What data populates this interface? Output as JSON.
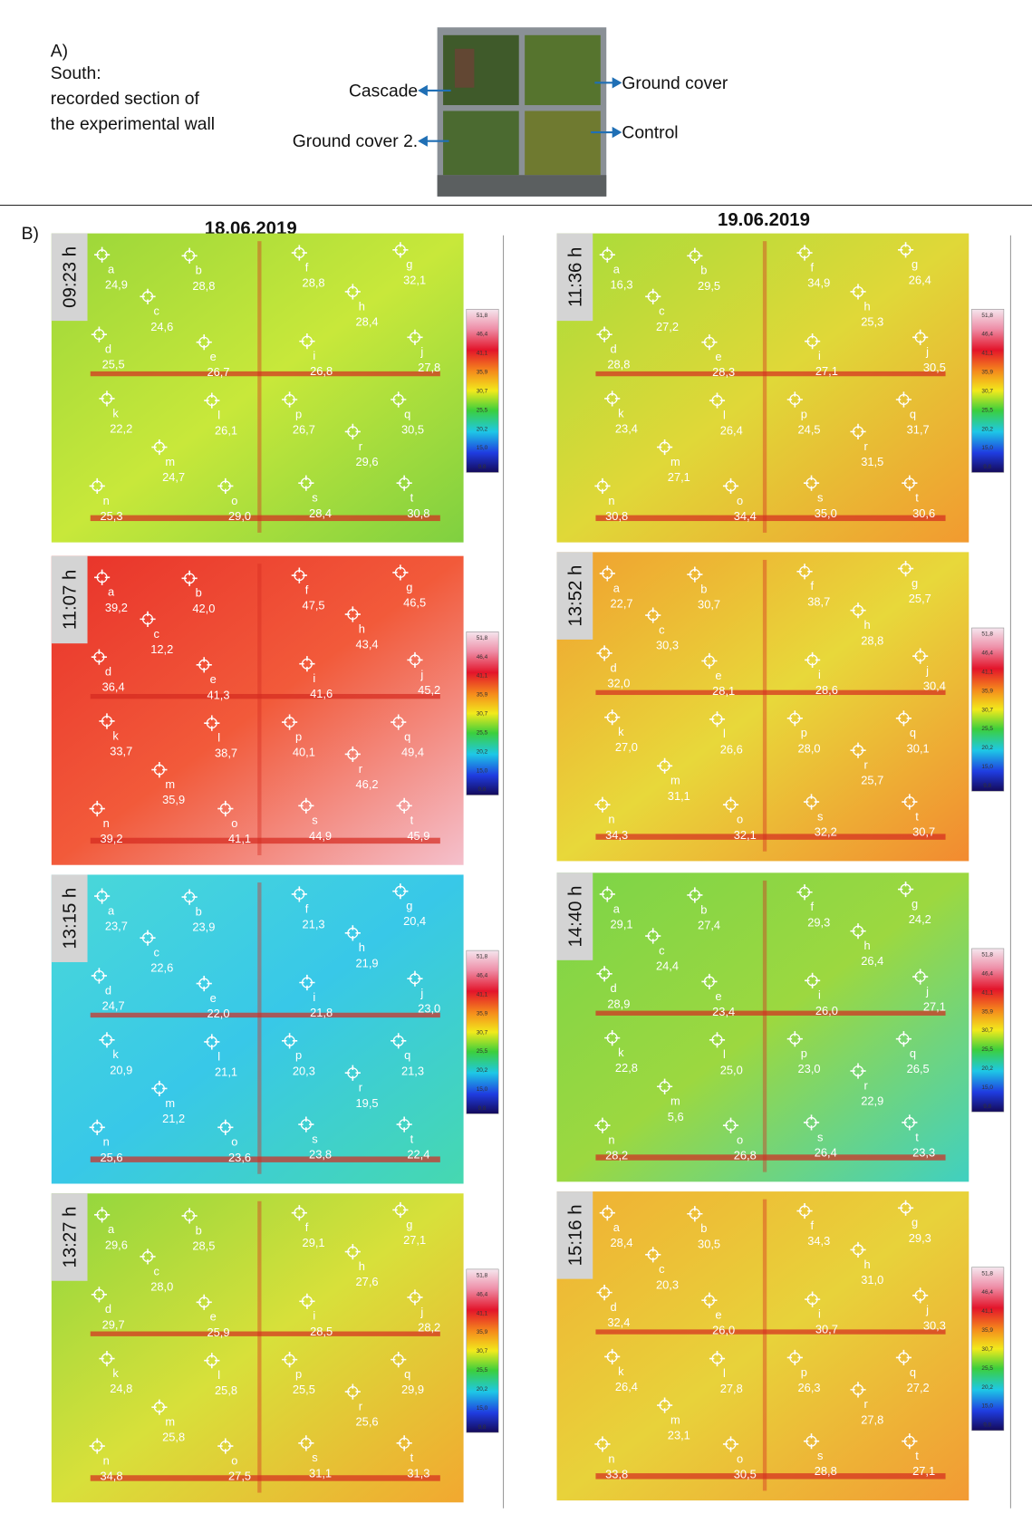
{
  "header": {
    "label": "A)",
    "lines": [
      "South:",
      "recorded section of",
      "the experimental wall"
    ]
  },
  "photo_labels": [
    "Cascade",
    "Ground cover",
    "Ground cover 2.",
    "Control"
  ],
  "section_b": "B)",
  "colorbar": [
    "51,8",
    "46,4",
    "41,1",
    "35,9",
    "30,7",
    "25,5",
    "20,2",
    "15,0",
    "9,8"
  ],
  "columns": [
    {
      "date": "18.06.2019",
      "panels": [
        {
          "time": "09:23 h",
          "points": [
            {
              "label": "a",
              "value": "24,9"
            },
            {
              "label": "b",
              "value": "28,8"
            },
            {
              "label": "f",
              "value": "28,8"
            },
            {
              "label": "g",
              "value": "32,1"
            },
            {
              "label": "c",
              "value": "24,6"
            },
            {
              "label": "h",
              "value": "28,4"
            },
            {
              "label": "d",
              "value": "25,5"
            },
            {
              "label": "e",
              "value": "26,7"
            },
            {
              "label": "i",
              "value": "26,8"
            },
            {
              "label": "j",
              "value": "27,8"
            },
            {
              "label": "k",
              "value": "22,2"
            },
            {
              "label": "l",
              "value": "26,1"
            },
            {
              "label": "p",
              "value": "26,7"
            },
            {
              "label": "q",
              "value": "30,5"
            },
            {
              "label": "m",
              "value": "24,7"
            },
            {
              "label": "r",
              "value": "29,6"
            },
            {
              "label": "n",
              "value": "25,3"
            },
            {
              "label": "o",
              "value": "29,0"
            },
            {
              "label": "s",
              "value": "28,4"
            },
            {
              "label": "t",
              "value": "30,8"
            }
          ]
        },
        {
          "time": "11:07 h",
          "points": [
            {
              "label": "a",
              "value": "39,2"
            },
            {
              "label": "b",
              "value": "42,0"
            },
            {
              "label": "f",
              "value": "47,5"
            },
            {
              "label": "g",
              "value": "46,5"
            },
            {
              "label": "c",
              "value": "12,2"
            },
            {
              "label": "h",
              "value": "43,4"
            },
            {
              "label": "d",
              "value": "36,4"
            },
            {
              "label": "e",
              "value": "41,3"
            },
            {
              "label": "i",
              "value": "41,6"
            },
            {
              "label": "j",
              "value": "45,2"
            },
            {
              "label": "k",
              "value": "33,7"
            },
            {
              "label": "l",
              "value": "38,7"
            },
            {
              "label": "p",
              "value": "40,1"
            },
            {
              "label": "q",
              "value": "49,4"
            },
            {
              "label": "m",
              "value": "35,9"
            },
            {
              "label": "r",
              "value": "46,2"
            },
            {
              "label": "n",
              "value": "39,2"
            },
            {
              "label": "o",
              "value": "41,1"
            },
            {
              "label": "s",
              "value": "44,9"
            },
            {
              "label": "t",
              "value": "45,9"
            }
          ]
        },
        {
          "time": "13:15 h",
          "points": [
            {
              "label": "a",
              "value": "23,7"
            },
            {
              "label": "b",
              "value": "23,9"
            },
            {
              "label": "f",
              "value": "21,3"
            },
            {
              "label": "g",
              "value": "20,4"
            },
            {
              "label": "c",
              "value": "22,6"
            },
            {
              "label": "h",
              "value": "21,9"
            },
            {
              "label": "d",
              "value": "24,7"
            },
            {
              "label": "e",
              "value": "22,0"
            },
            {
              "label": "i",
              "value": "21,8"
            },
            {
              "label": "j",
              "value": "23,0"
            },
            {
              "label": "k",
              "value": "20,9"
            },
            {
              "label": "l",
              "value": "21,1"
            },
            {
              "label": "p",
              "value": "20,3"
            },
            {
              "label": "q",
              "value": "21,3"
            },
            {
              "label": "m",
              "value": "21,2"
            },
            {
              "label": "r",
              "value": "19,5"
            },
            {
              "label": "n",
              "value": "25,6"
            },
            {
              "label": "o",
              "value": "23,6"
            },
            {
              "label": "s",
              "value": "23,8"
            },
            {
              "label": "t",
              "value": "22,4"
            }
          ]
        },
        {
          "time": "13:27 h",
          "points": [
            {
              "label": "a",
              "value": "29,6"
            },
            {
              "label": "b",
              "value": "28,5"
            },
            {
              "label": "f",
              "value": "29,1"
            },
            {
              "label": "g",
              "value": "27,1"
            },
            {
              "label": "c",
              "value": "28,0"
            },
            {
              "label": "h",
              "value": "27,6"
            },
            {
              "label": "d",
              "value": "29,7"
            },
            {
              "label": "e",
              "value": "25,9"
            },
            {
              "label": "i",
              "value": "28,5"
            },
            {
              "label": "j",
              "value": "28,2"
            },
            {
              "label": "k",
              "value": "24,8"
            },
            {
              "label": "l",
              "value": "25,8"
            },
            {
              "label": "p",
              "value": "25,5"
            },
            {
              "label": "q",
              "value": "29,9"
            },
            {
              "label": "m",
              "value": "25,8"
            },
            {
              "label": "r",
              "value": "25,6"
            },
            {
              "label": "n",
              "value": "34,8"
            },
            {
              "label": "o",
              "value": "27,5"
            },
            {
              "label": "s",
              "value": "31,1"
            },
            {
              "label": "t",
              "value": "31,3"
            }
          ]
        }
      ]
    },
    {
      "date": "19.06.2019",
      "panels": [
        {
          "time": "11:36 h",
          "points": [
            {
              "label": "a",
              "value": "16,3"
            },
            {
              "label": "b",
              "value": "29,5"
            },
            {
              "label": "f",
              "value": "34,9"
            },
            {
              "label": "g",
              "value": "26,4"
            },
            {
              "label": "c",
              "value": "27,2"
            },
            {
              "label": "h",
              "value": "25,3"
            },
            {
              "label": "d",
              "value": "28,8"
            },
            {
              "label": "e",
              "value": "28,3"
            },
            {
              "label": "i",
              "value": "27,1"
            },
            {
              "label": "j",
              "value": "30,5"
            },
            {
              "label": "k",
              "value": "23,4"
            },
            {
              "label": "l",
              "value": "26,4"
            },
            {
              "label": "p",
              "value": "24,5"
            },
            {
              "label": "q",
              "value": "31,7"
            },
            {
              "label": "m",
              "value": "27,1"
            },
            {
              "label": "r",
              "value": "31,5"
            },
            {
              "label": "n",
              "value": "30,8"
            },
            {
              "label": "o",
              "value": "34,4"
            },
            {
              "label": "s",
              "value": "35,0"
            },
            {
              "label": "t",
              "value": "30,6"
            }
          ]
        },
        {
          "time": "13:52 h",
          "points": [
            {
              "label": "a",
              "value": "22,7"
            },
            {
              "label": "b",
              "value": "30,7"
            },
            {
              "label": "f",
              "value": "38,7"
            },
            {
              "label": "g",
              "value": "25,7"
            },
            {
              "label": "c",
              "value": "30,3"
            },
            {
              "label": "h",
              "value": "28,8"
            },
            {
              "label": "d",
              "value": "32,0"
            },
            {
              "label": "e",
              "value": "28,1"
            },
            {
              "label": "i",
              "value": "28,6"
            },
            {
              "label": "j",
              "value": "30,4"
            },
            {
              "label": "k",
              "value": "27,0"
            },
            {
              "label": "l",
              "value": "26,6"
            },
            {
              "label": "p",
              "value": "28,0"
            },
            {
              "label": "q",
              "value": "30,1"
            },
            {
              "label": "m",
              "value": "31,1"
            },
            {
              "label": "r",
              "value": "25,7"
            },
            {
              "label": "n",
              "value": "34,3"
            },
            {
              "label": "o",
              "value": "32,1"
            },
            {
              "label": "s",
              "value": "32,2"
            },
            {
              "label": "t",
              "value": "30,7"
            }
          ]
        },
        {
          "time": "14:40 h",
          "points": [
            {
              "label": "a",
              "value": "29,1"
            },
            {
              "label": "b",
              "value": "27,4"
            },
            {
              "label": "f",
              "value": "29,3"
            },
            {
              "label": "g",
              "value": "24,2"
            },
            {
              "label": "c",
              "value": "24,4"
            },
            {
              "label": "h",
              "value": "26,4"
            },
            {
              "label": "d",
              "value": "28,9"
            },
            {
              "label": "e",
              "value": "23,4"
            },
            {
              "label": "i",
              "value": "26,0"
            },
            {
              "label": "j",
              "value": "27,1"
            },
            {
              "label": "k",
              "value": "22,8"
            },
            {
              "label": "l",
              "value": "25,0"
            },
            {
              "label": "p",
              "value": "23,0"
            },
            {
              "label": "q",
              "value": "26,5"
            },
            {
              "label": "m",
              "value": "5,6"
            },
            {
              "label": "r",
              "value": "22,9"
            },
            {
              "label": "n",
              "value": "28,2"
            },
            {
              "label": "o",
              "value": "26,8"
            },
            {
              "label": "s",
              "value": "26,4"
            },
            {
              "label": "t",
              "value": "23,3"
            }
          ]
        },
        {
          "time": "15:16 h",
          "points": [
            {
              "label": "a",
              "value": "28,4"
            },
            {
              "label": "b",
              "value": "30,5"
            },
            {
              "label": "f",
              "value": "34,3"
            },
            {
              "label": "g",
              "value": "29,3"
            },
            {
              "label": "c",
              "value": "20,3"
            },
            {
              "label": "h",
              "value": "31,0"
            },
            {
              "label": "d",
              "value": "32,4"
            },
            {
              "label": "e",
              "value": "26,0"
            },
            {
              "label": "i",
              "value": "30,7"
            },
            {
              "label": "j",
              "value": "30,3"
            },
            {
              "label": "k",
              "value": "26,4"
            },
            {
              "label": "l",
              "value": "27,8"
            },
            {
              "label": "p",
              "value": "26,3"
            },
            {
              "label": "q",
              "value": "27,2"
            },
            {
              "label": "m",
              "value": "23,1"
            },
            {
              "label": "r",
              "value": "27,8"
            },
            {
              "label": "n",
              "value": "33,8"
            },
            {
              "label": "o",
              "value": "30,5"
            },
            {
              "label": "s",
              "value": "28,8"
            },
            {
              "label": "t",
              "value": "27,1"
            }
          ]
        }
      ]
    }
  ]
}
